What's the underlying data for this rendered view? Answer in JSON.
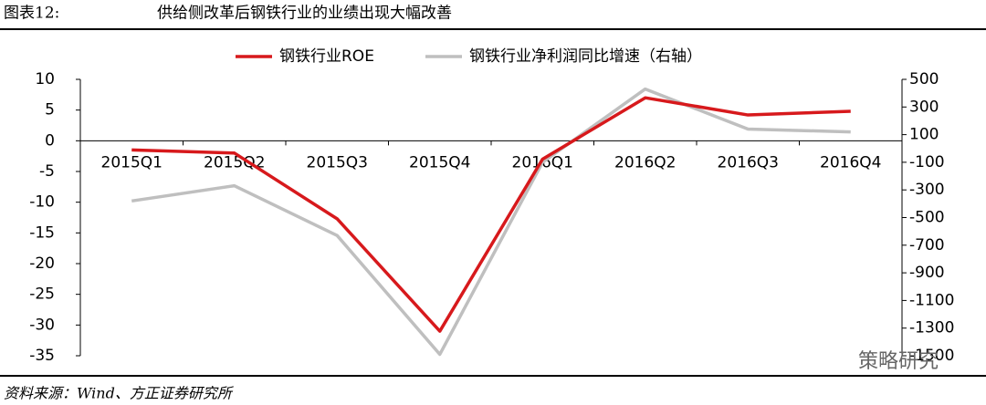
{
  "header": {
    "label": "图表12:",
    "title": "供给侧改革后钢铁行业的业绩出现大幅改善"
  },
  "source": "资料来源：Wind、方正证券研究所",
  "watermark": "策略研究",
  "chart_data": {
    "type": "line",
    "categories": [
      "2015Q1",
      "2015Q2",
      "2015Q3",
      "2015Q4",
      "2016Q1",
      "2016Q2",
      "2016Q3",
      "2016Q4"
    ],
    "series": [
      {
        "name": "钢铁行业ROE",
        "color": "#d7191c",
        "values": [
          -1.5,
          -2,
          -12.7,
          -31,
          -3,
          7,
          4.2,
          4.8
        ]
      },
      {
        "name": "钢铁行业净利润同比增速（右轴）",
        "color": "#bfbfbf",
        "axis": "y2",
        "values": [
          -380,
          -270,
          -630,
          -1490,
          -100,
          430,
          140,
          120
        ]
      }
    ],
    "ylim": [
      -35,
      10
    ],
    "yticks": [
      10,
      5,
      0,
      -5,
      -10,
      -15,
      -20,
      -25,
      -30,
      -35
    ],
    "y2lim": [
      -1500,
      500
    ],
    "y2ticks": [
      500,
      300,
      100,
      -100,
      -300,
      -500,
      -700,
      -900,
      -1100,
      -1300,
      -1500
    ],
    "legend": "top"
  }
}
